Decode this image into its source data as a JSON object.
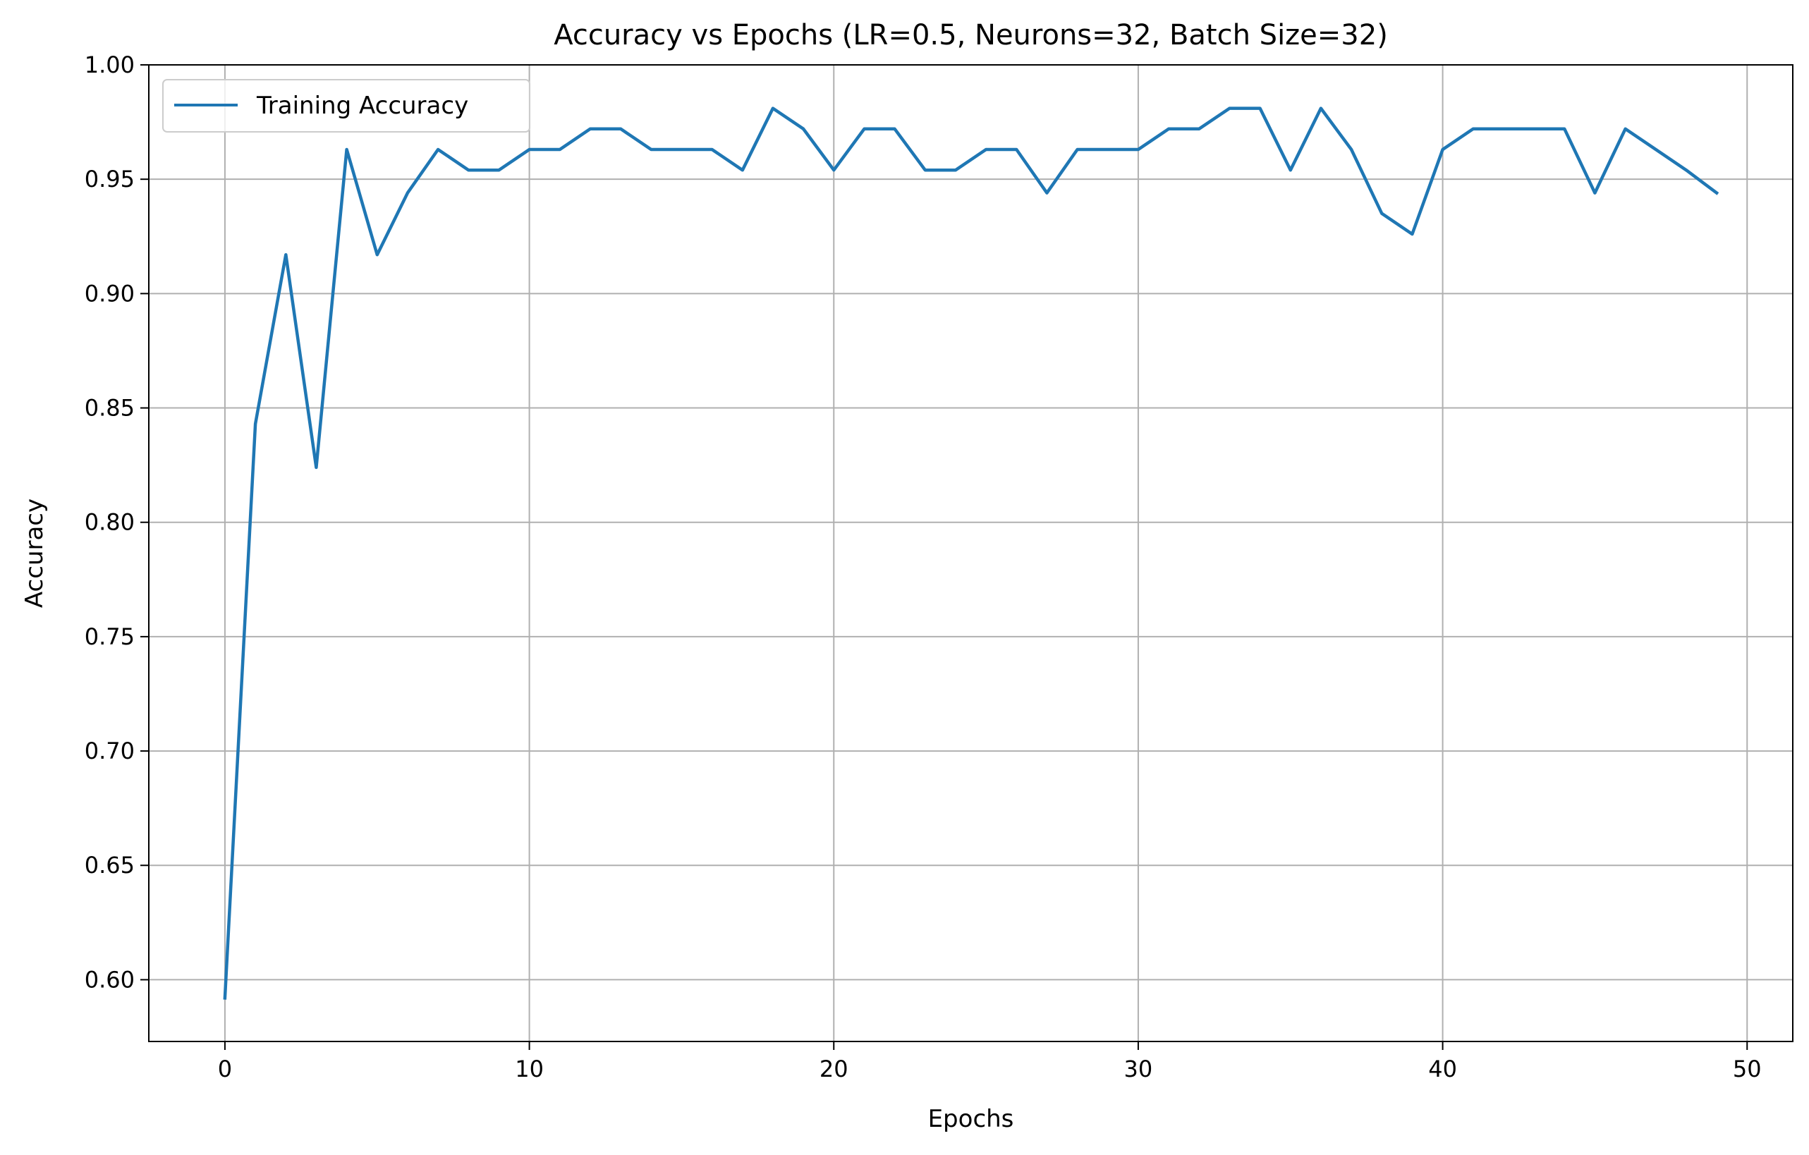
{
  "chart_data": {
    "type": "line",
    "title": "Accuracy vs Epochs (LR=0.5, Neurons=32, Batch Size=32)",
    "xlabel": "Epochs",
    "ylabel": "Accuracy",
    "xlim": [
      -2.5,
      51.5
    ],
    "ylim": [
      0.573,
      1.0
    ],
    "xticks": [
      0,
      10,
      20,
      30,
      40,
      50
    ],
    "yticks": [
      0.6,
      0.65,
      0.7,
      0.75,
      0.8,
      0.85,
      0.9,
      0.95,
      1.0
    ],
    "xtick_labels": [
      "0",
      "10",
      "20",
      "30",
      "40",
      "50"
    ],
    "ytick_labels": [
      "0.60",
      "0.65",
      "0.70",
      "0.75",
      "0.80",
      "0.85",
      "0.90",
      "0.95",
      "1.00"
    ],
    "grid": true,
    "legend": {
      "position": "top-left",
      "entries": [
        "Training Accuracy"
      ]
    },
    "series": [
      {
        "name": "Training Accuracy",
        "color": "#1f77b4",
        "x": [
          0,
          1,
          2,
          3,
          4,
          5,
          6,
          7,
          8,
          9,
          10,
          11,
          12,
          13,
          14,
          15,
          16,
          17,
          18,
          19,
          20,
          21,
          22,
          23,
          24,
          25,
          26,
          27,
          28,
          29,
          30,
          31,
          32,
          33,
          34,
          35,
          36,
          37,
          38,
          39,
          40,
          41,
          42,
          43,
          44,
          45,
          46,
          47,
          48,
          49
        ],
        "values": [
          0.592,
          0.843,
          0.917,
          0.824,
          0.963,
          0.917,
          0.944,
          0.963,
          0.954,
          0.954,
          0.963,
          0.963,
          0.972,
          0.972,
          0.963,
          0.963,
          0.963,
          0.954,
          0.981,
          0.972,
          0.954,
          0.972,
          0.972,
          0.954,
          0.954,
          0.963,
          0.963,
          0.944,
          0.963,
          0.963,
          0.963,
          0.972,
          0.972,
          0.981,
          0.981,
          0.954,
          0.981,
          0.963,
          0.935,
          0.926,
          0.963,
          0.972,
          0.972,
          0.972,
          0.972,
          0.944,
          0.972,
          0.963,
          0.954,
          0.944
        ]
      }
    ]
  }
}
